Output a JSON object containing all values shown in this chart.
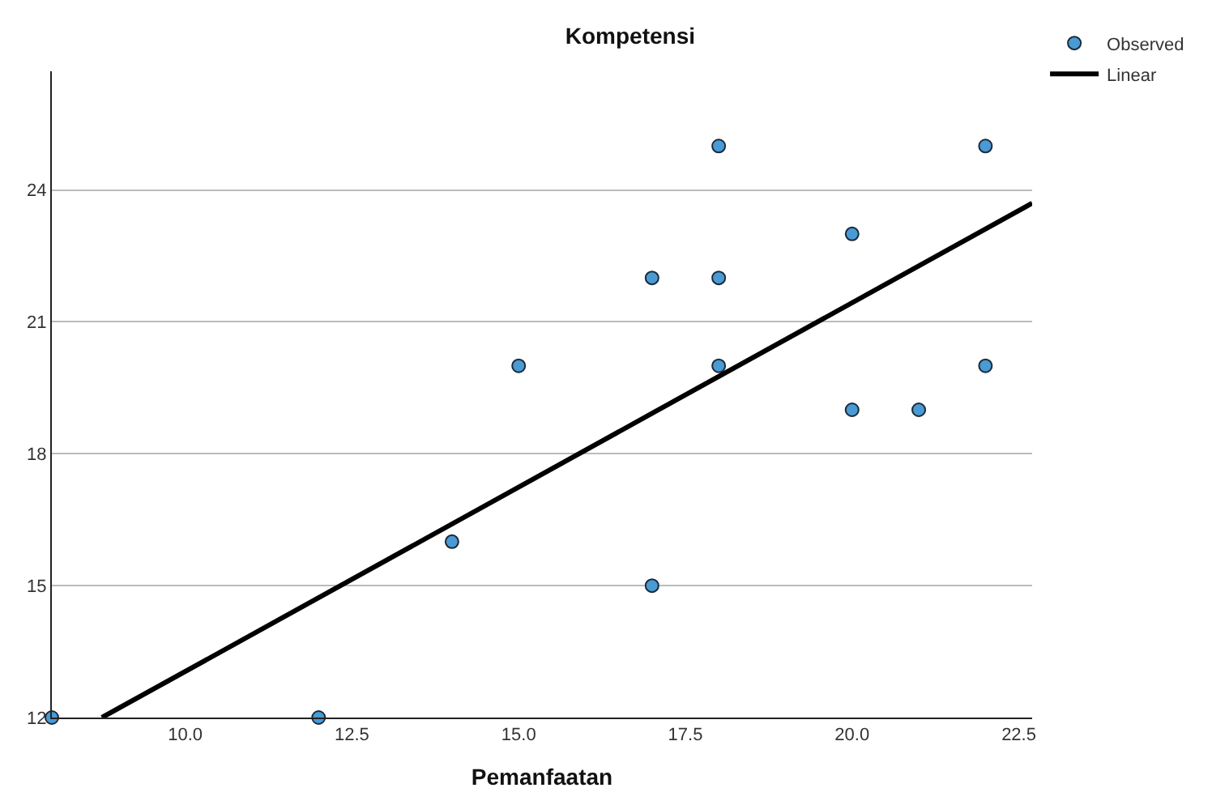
{
  "chart_data": {
    "type": "scatter",
    "title": "Kompetensi",
    "xlabel": "Pemanfaatan",
    "xlim": [
      8,
      22.7
    ],
    "xticks": [
      {
        "value": 10,
        "label": "10.0"
      },
      {
        "value": 12.5,
        "label": "12.5"
      },
      {
        "value": 15,
        "label": "15.0"
      },
      {
        "value": 17.5,
        "label": "17.5"
      },
      {
        "value": 20,
        "label": "20.0"
      },
      {
        "value": 22.5,
        "label": "22.5"
      }
    ],
    "ylim": [
      12,
      26.7
    ],
    "yticks": [
      12,
      15,
      18,
      21,
      24
    ],
    "grid": "y",
    "legend": "top right",
    "series": [
      {
        "name": "Observed",
        "marker": "circle",
        "color": "#4a9ad4",
        "x": [
          8,
          12,
          14,
          15,
          17,
          17,
          18,
          18,
          18,
          20,
          20,
          21,
          22,
          22
        ],
        "values": [
          12,
          12,
          16,
          20,
          22,
          15,
          25,
          22,
          20,
          23,
          19,
          19,
          25,
          20
        ]
      },
      {
        "name": "Linear",
        "type": "line",
        "marker": "none",
        "line_style": "solid",
        "color": "#000000",
        "x": [
          8.75,
          22.7
        ],
        "values": [
          12,
          23.7
        ]
      }
    ]
  }
}
